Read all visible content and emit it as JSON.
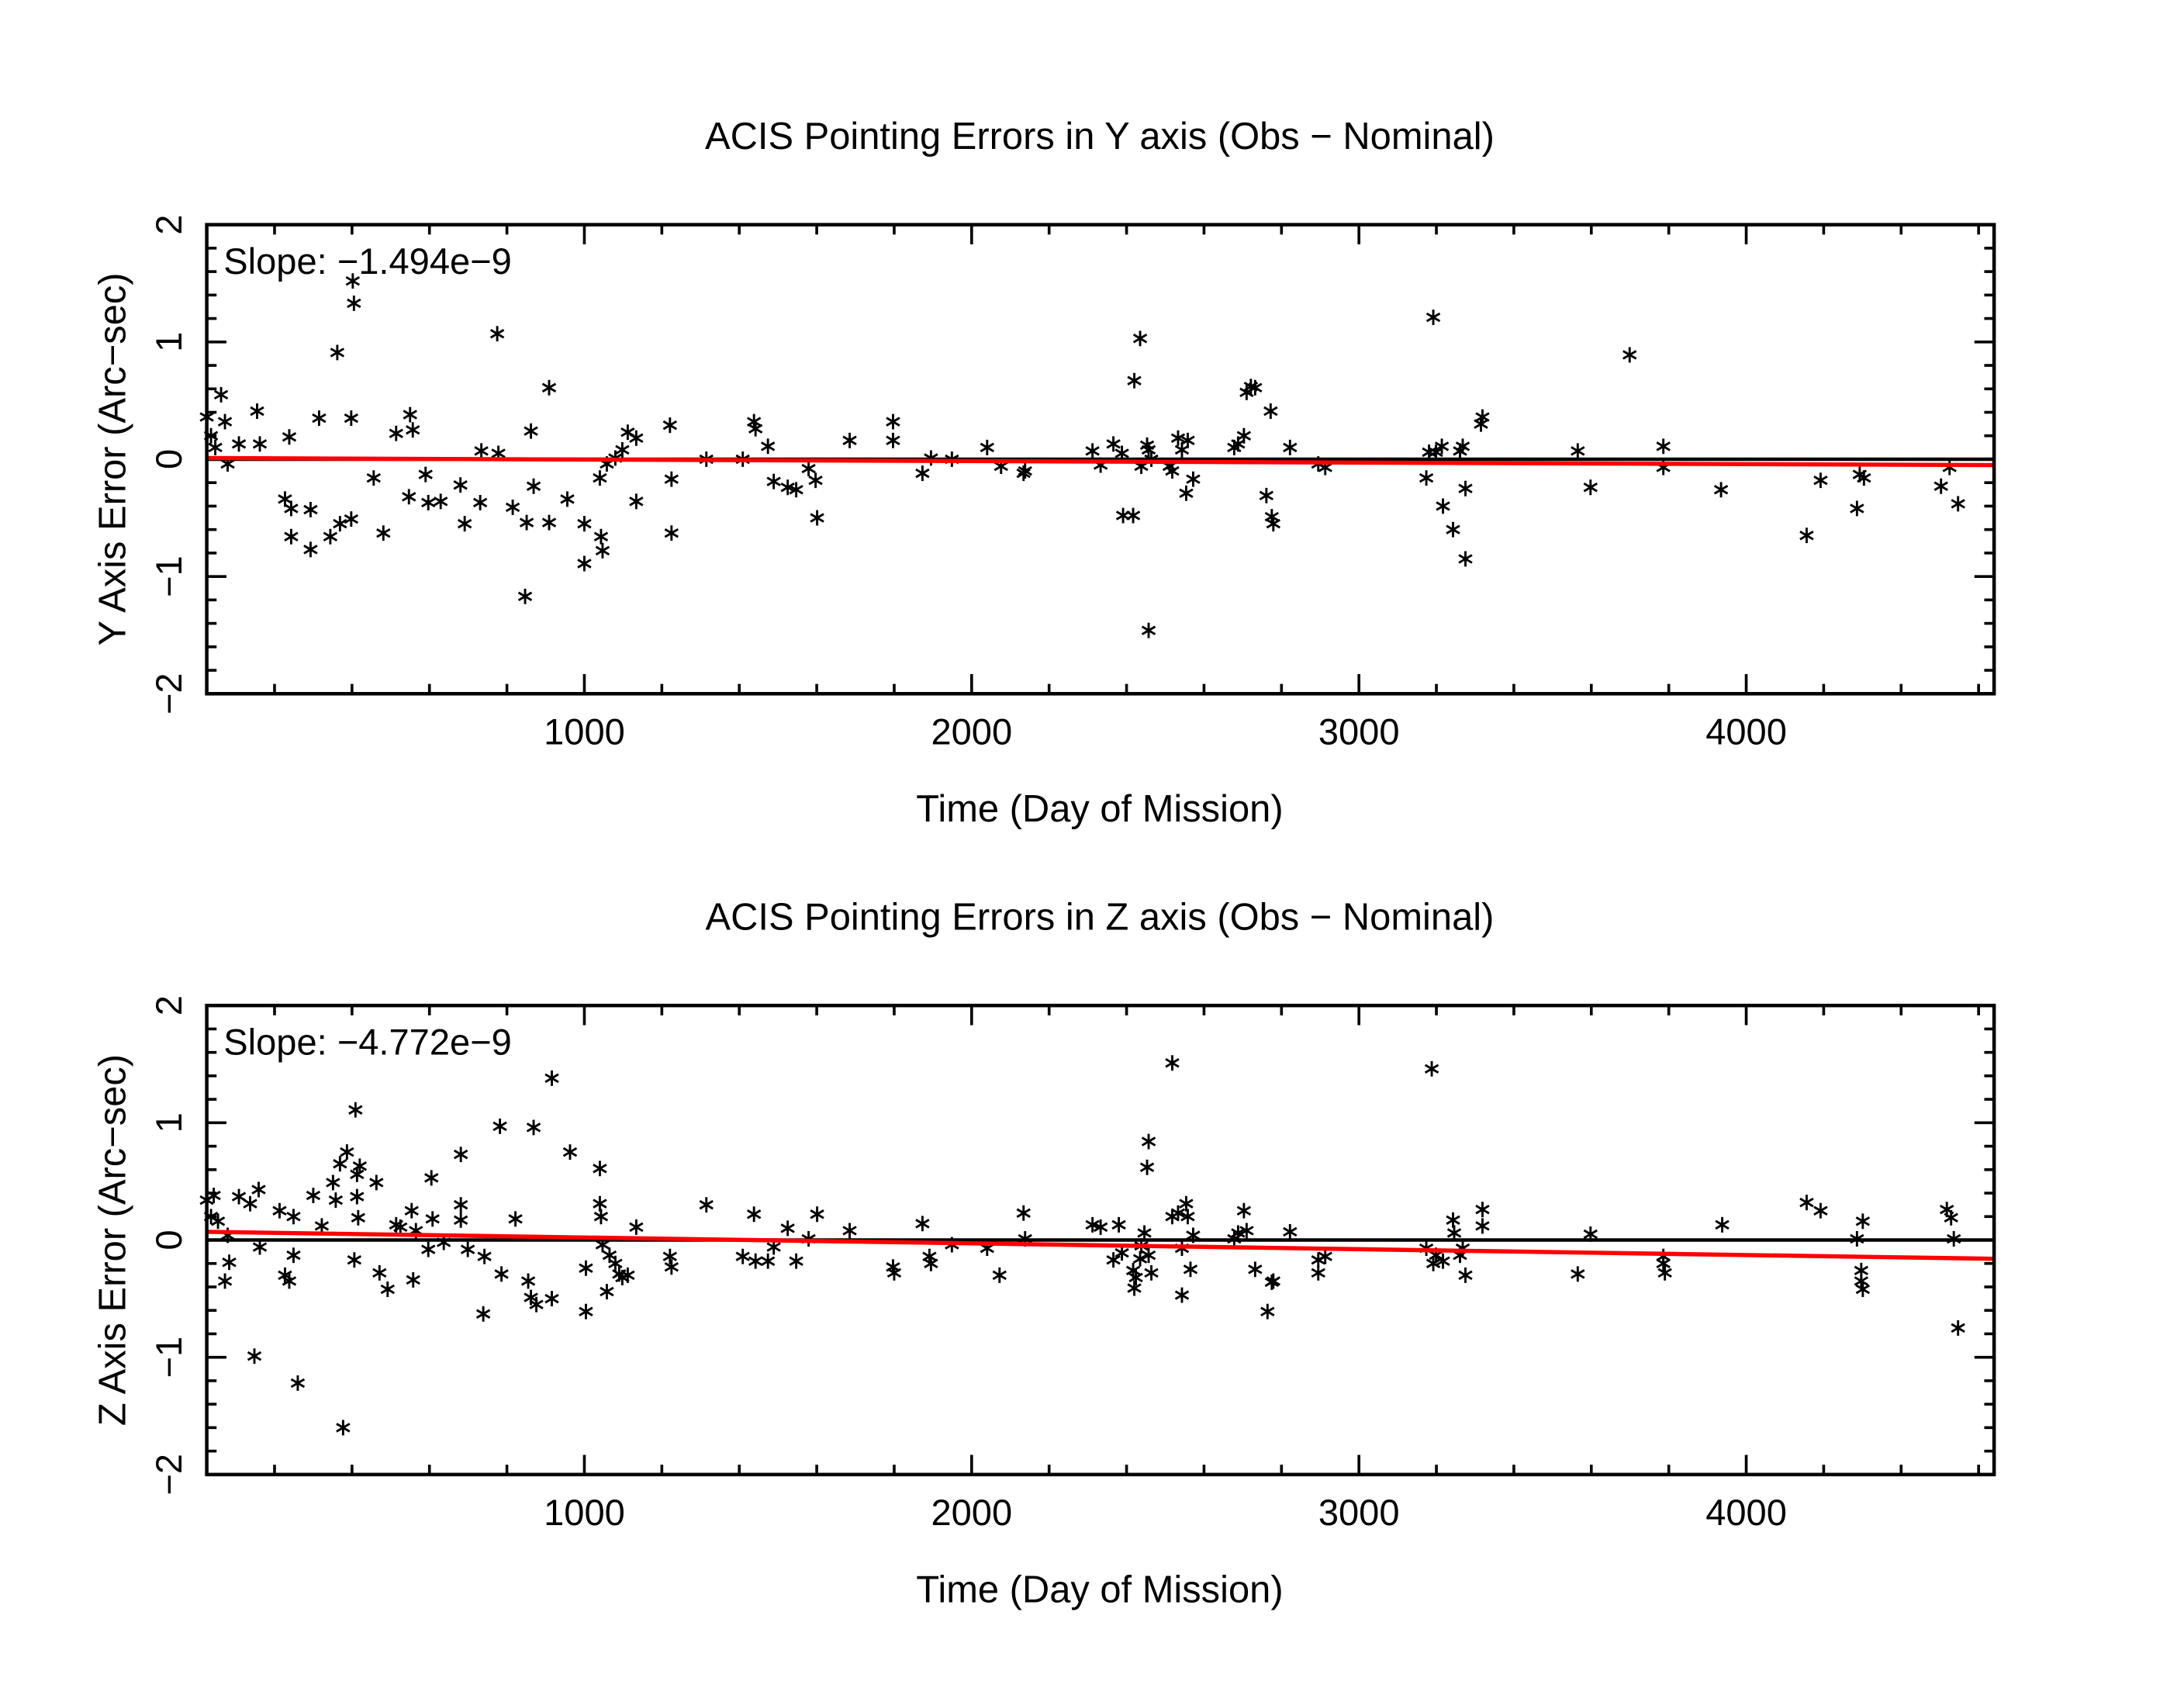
{
  "chart_data": [
    {
      "type": "scatter",
      "title": "ACIS Pointing Errors in Y axis (Obs - Nominal)",
      "xlabel": "Time (Day of Mission)",
      "ylabel": "Y Axis Error (Arc-sec)",
      "annotation": "Slope: -1.494e-9",
      "xlim": [
        25,
        4640
      ],
      "ylim": [
        -2,
        2
      ],
      "xticks": [
        1000,
        2000,
        3000,
        4000
      ],
      "xtick_labels": [
        "1000",
        "2000",
        "3000",
        "4000"
      ],
      "yticks": [
        -2,
        -1,
        0,
        1,
        2
      ],
      "ytick_labels": [
        "-2",
        "-1",
        "0",
        "1",
        "2"
      ],
      "marker": "asterisk",
      "zero_line_color": "#000000",
      "fit_color": "#ff0000",
      "fit_line": {
        "x": [
          25,
          4640
        ],
        "y": [
          0.01,
          -0.05
        ]
      },
      "x": [
        25,
        36,
        47,
        62,
        72,
        79,
        108,
        155,
        162,
        227,
        238,
        243,
        243,
        293,
        293,
        315,
        344,
        362,
        369,
        398,
        402,
        405,
        398,
        456,
        481,
        514,
        547,
        550,
        557,
        590,
        597,
        629,
        680,
        691,
        731,
        734,
        775,
        778,
        815,
        847,
        851,
        862,
        869,
        909,
        909,
        956,
        1000,
        1000,
        1040,
        1043,
        1047,
        1058,
        1080,
        1098,
        1112,
        1134,
        1134,
        1221,
        1225,
        1225,
        1315,
        1409,
        1438,
        1442,
        1474,
        1489,
        1525,
        1547,
        1579,
        1597,
        1601,
        1685,
        1797,
        1797,
        1873,
        1895,
        1949,
        2040,
        2076,
        2134,
        2138,
        2312,
        2333,
        2366,
        2388,
        2391,
        2417,
        2420,
        2435,
        2438,
        2453,
        2457,
        2457,
        2464,
        2511,
        2518,
        2533,
        2543,
        2554,
        2558,
        2572,
        2678,
        2688,
        2703,
        2710,
        2721,
        2732,
        2761,
        2772,
        2775,
        2779,
        2822,
        2895,
        2913,
        3174,
        3181,
        3192,
        3199,
        3214,
        3217,
        3243,
        3261,
        3268,
        3275,
        3275,
        3315,
        3319,
        3565,
        3598,
        3699,
        3786,
        3786,
        3935,
        4156,
        4192,
        4286,
        4293,
        4304,
        4503,
        4525,
        4547
      ],
      "y": [
        0.36,
        0.2,
        0.1,
        0.55,
        0.32,
        -0.04,
        0.13,
        0.41,
        0.13,
        -0.34,
        0.19,
        -0.42,
        -0.66,
        -0.43,
        -0.77,
        0.35,
        -0.66,
        0.91,
        -0.55,
        0.35,
        1.52,
        1.33,
        -0.51,
        -0.16,
        -0.63,
        0.22,
        -0.32,
        0.38,
        0.25,
        -0.13,
        -0.37,
        -0.36,
        -0.22,
        -0.55,
        -0.37,
        0.07,
        1.07,
        0.05,
        -0.41,
        -1.17,
        -0.54,
        0.24,
        -0.23,
        0.61,
        -0.54,
        -0.34,
        -0.55,
        -0.89,
        -0.16,
        -0.66,
        -0.78,
        -0.04,
        0.01,
        0.08,
        0.23,
        0.18,
        -0.36,
        0.29,
        -0.17,
        -0.63,
        0,
        0,
        0.32,
        0.26,
        0.11,
        -0.19,
        -0.24,
        -0.26,
        -0.08,
        -0.18,
        -0.5,
        0.16,
        0.32,
        0.16,
        -0.12,
        0.01,
        0,
        0.1,
        -0.06,
        -0.12,
        -0.1,
        0.07,
        -0.05,
        0.13,
        0.05,
        -0.48,
        -0.48,
        0.67,
        1.03,
        -0.06,
        0.12,
        0.08,
        -1.46,
        0,
        -0.06,
        -0.1,
        0.18,
        0.08,
        -0.29,
        0.16,
        -0.17,
        0.1,
        0.13,
        0.2,
        0.57,
        0.62,
        0.61,
        -0.31,
        0.41,
        -0.49,
        -0.55,
        0.1,
        -0.04,
        -0.07,
        -0.16,
        0.06,
        1.21,
        0.06,
        0.11,
        -0.4,
        -0.6,
        0.07,
        0.11,
        -0.25,
        -0.85,
        0.3,
        0.36,
        0.07,
        -0.24,
        0.89,
        0.11,
        -0.07,
        -0.26,
        -0.65,
        -0.18,
        -0.42,
        -0.13,
        -0.16,
        -0.23,
        -0.07,
        -0.38
      ]
    },
    {
      "type": "scatter",
      "title": "ACIS Pointing Errors in  Z axis (Obs - Nominal)",
      "xlabel": "Time (Day of Mission)",
      "ylabel": "Z Axis Error (Arc-sec)",
      "annotation": "Slope: -4.772e-9",
      "xlim": [
        25,
        4640
      ],
      "ylim": [
        -2,
        2
      ],
      "xticks": [
        1000,
        2000,
        3000,
        4000
      ],
      "xtick_labels": [
        "1000",
        "2000",
        "3000",
        "4000"
      ],
      "yticks": [
        -2,
        -1,
        0,
        1,
        2
      ],
      "ytick_labels": [
        "-2",
        "-1",
        "0",
        "1",
        "2"
      ],
      "marker": "asterisk",
      "zero_line_color": "#000000",
      "fit_color": "#ff0000",
      "fit_line": {
        "x": [
          25,
          4640
        ],
        "y": [
          0.07,
          -0.16
        ]
      },
      "x": [
        25,
        36,
        43,
        54,
        72,
        79,
        83,
        108,
        137,
        148,
        159,
        162,
        213,
        227,
        238,
        249,
        249,
        260,
        300,
        322,
        351,
        358,
        369,
        377,
        387,
        406,
        409,
        413,
        413,
        416,
        420,
        463,
        471,
        492,
        514,
        525,
        554,
        558,
        565,
        597,
        605,
        608,
        637,
        681,
        681,
        681,
        699,
        739,
        742,
        782,
        786,
        822,
        855,
        862,
        869,
        876,
        916,
        916,
        963,
        1004,
        1004,
        1040,
        1040,
        1043,
        1047,
        1058,
        1065,
        1080,
        1090,
        1098,
        1112,
        1134,
        1221,
        1225,
        1315,
        1409,
        1438,
        1442,
        1474,
        1489,
        1525,
        1547,
        1579,
        1601,
        1685,
        1797,
        1800,
        1873,
        1891,
        1895,
        1949,
        2040,
        2072,
        2134,
        2138,
        2312,
        2333,
        2380,
        2366,
        2388,
        2417,
        2420,
        2424,
        2435,
        2438,
        2446,
        2453,
        2457,
        2457,
        2464,
        2518,
        2518,
        2533,
        2543,
        2543,
        2554,
        2558,
        2565,
        2572,
        2678,
        2688,
        2703,
        2710,
        2732,
        2764,
        2775,
        2779,
        2822,
        2895,
        2895,
        2913,
        3174,
        3188,
        3192,
        3199,
        3217,
        3243,
        3246,
        3261,
        3268,
        3275,
        3319,
        3319,
        3565,
        3598,
        3786,
        3786,
        3790,
        3938,
        4156,
        4192,
        4286,
        4301,
        4297,
        4297,
        4301,
        4518,
        4529,
        4536,
        4547
      ],
      "y": [
        0.34,
        0.2,
        0.38,
        0.16,
        -0.35,
        0.04,
        -0.19,
        0.37,
        0.31,
        -0.99,
        0.43,
        -0.06,
        0.25,
        -0.3,
        -0.35,
        0.2,
        -0.13,
        -1.22,
        0.38,
        0.12,
        0.49,
        0.34,
        0.65,
        -1.6,
        0.75,
        -0.17,
        1.11,
        0.56,
        0.37,
        0.19,
        0.63,
        0.49,
        -0.28,
        -0.42,
        0.13,
        0.11,
        0.25,
        -0.34,
        0.08,
        -0.08,
        0.53,
        0.18,
        -0.02,
        0.17,
        0.3,
        0.73,
        -0.08,
        -0.63,
        -0.14,
        0.97,
        -0.29,
        0.18,
        -0.35,
        -0.49,
        0.96,
        -0.55,
        1.38,
        -0.5,
        0.75,
        -0.24,
        -0.61,
        0.61,
        0.31,
        0.2,
        -0.04,
        -0.44,
        -0.13,
        -0.2,
        -0.29,
        -0.32,
        -0.3,
        0.11,
        -0.14,
        -0.23,
        0.3,
        -0.14,
        0.22,
        -0.18,
        -0.18,
        -0.06,
        0.1,
        -0.18,
        0.01,
        0.22,
        0.08,
        -0.23,
        -0.28,
        0.14,
        -0.14,
        -0.2,
        -0.04,
        -0.07,
        -0.3,
        0.23,
        0.01,
        0.13,
        0.11,
        0.13,
        -0.17,
        -0.11,
        -0.26,
        -0.41,
        -0.32,
        -0.16,
        -0.05,
        0.06,
        0.62,
        0.84,
        -0.13,
        -0.28,
        1.51,
        0.2,
        0.23,
        -0.07,
        -0.47,
        0.31,
        0.2,
        -0.25,
        0.04,
        0.01,
        0.06,
        0.25,
        0.08,
        -0.25,
        -0.61,
        -0.36,
        -0.35,
        0.07,
        -0.28,
        -0.17,
        -0.14,
        -0.07,
        1.46,
        -0.2,
        -0.13,
        -0.18,
        0.17,
        0.06,
        -0.13,
        -0.07,
        -0.3,
        0.26,
        0.12,
        -0.29,
        0.05,
        -0.14,
        -0.2,
        -0.28,
        0.13,
        0.32,
        0.25,
        0.01,
        0.16,
        -0.26,
        -0.35,
        -0.42,
        0.26,
        0.19,
        0.01,
        -0.75
      ]
    }
  ]
}
